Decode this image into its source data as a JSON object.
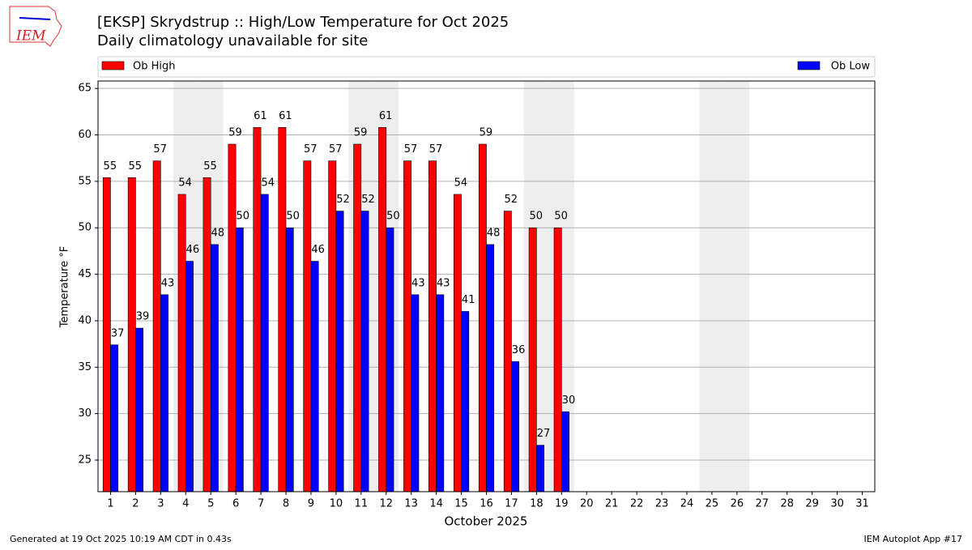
{
  "chart_data": {
    "type": "bar",
    "title": "[EKSP] Skrydstrup :: High/Low Temperature for Oct 2025",
    "subtitle": "Daily climatology unavailable for site",
    "x_label": "October 2025",
    "y_label": "Temperature °F",
    "footer_left": "Generated at 19 Oct 2025 10:19 AM CDT in 0.43s",
    "footer_right": "IEM Autoplot App #17",
    "logo": "IEM",
    "categories": [
      "1",
      "2",
      "3",
      "4",
      "5",
      "6",
      "7",
      "8",
      "9",
      "10",
      "11",
      "12",
      "13",
      "14",
      "15",
      "16",
      "17",
      "18",
      "19",
      "20",
      "21",
      "22",
      "23",
      "24",
      "25",
      "26",
      "27",
      "28",
      "29",
      "30",
      "31"
    ],
    "shaded_categories": [
      "4",
      "5",
      "11",
      "12",
      "18",
      "19",
      "25",
      "26"
    ],
    "series": [
      {
        "name": "Ob High",
        "color": "#ff0000",
        "values": [
          55.4,
          55.4,
          57.2,
          53.6,
          55.4,
          59,
          60.8,
          60.8,
          57.2,
          57.2,
          59,
          60.8,
          57.2,
          57.2,
          53.6,
          59,
          51.8,
          50,
          50,
          null,
          null,
          null,
          null,
          null,
          null,
          null,
          null,
          null,
          null,
          null,
          null
        ],
        "value_labels": [
          "55",
          "55",
          "57",
          "54",
          "55",
          "59",
          "61",
          "61",
          "57",
          "57",
          "59",
          "61",
          "57",
          "57",
          "54",
          "59",
          "52",
          "50",
          "50",
          null,
          null,
          null,
          null,
          null,
          null,
          null,
          null,
          null,
          null,
          null,
          null
        ]
      },
      {
        "name": "Ob Low",
        "color": "#0000ff",
        "values": [
          37.4,
          39.2,
          42.8,
          46.4,
          48.2,
          50,
          53.6,
          50,
          46.4,
          51.8,
          51.8,
          50,
          42.8,
          42.8,
          41,
          48.2,
          35.6,
          26.6,
          30.2,
          null,
          null,
          null,
          null,
          null,
          null,
          null,
          null,
          null,
          null,
          null,
          null
        ],
        "value_labels": [
          "37",
          "39",
          "43",
          "46",
          "48",
          "50",
          "54",
          "50",
          "46",
          "52",
          "52",
          "50",
          "43",
          "43",
          "41",
          "48",
          "36",
          "27",
          "30",
          null,
          null,
          null,
          null,
          null,
          null,
          null,
          null,
          null,
          null,
          null,
          null
        ]
      }
    ],
    "ylim": [
      21.6,
      65.8
    ],
    "yticks": [
      25,
      30,
      35,
      40,
      45,
      50,
      55,
      60,
      65
    ],
    "grid": true
  }
}
